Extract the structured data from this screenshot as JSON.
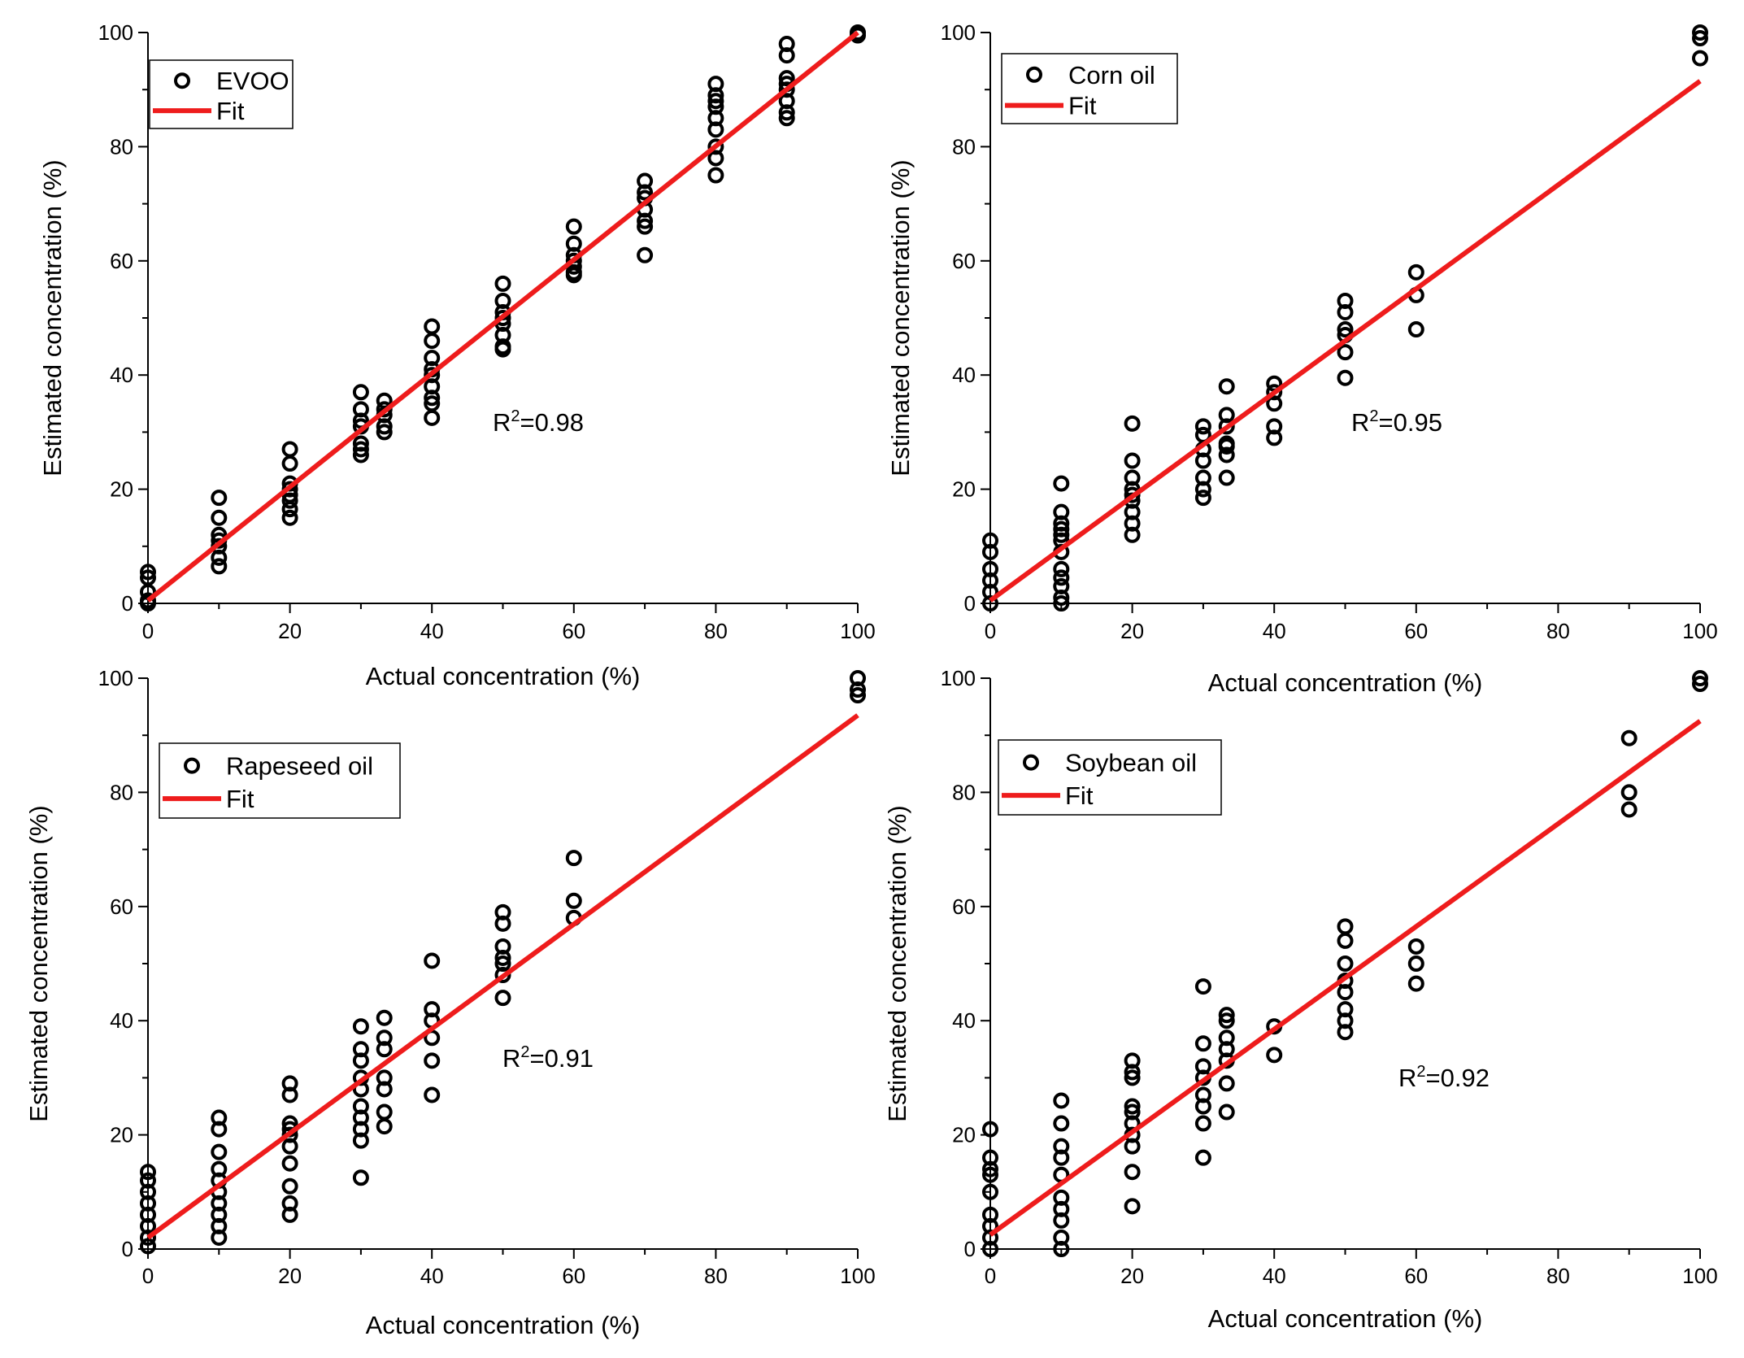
{
  "chart_data": [
    {
      "type": "scatter",
      "title": "",
      "xlabel": "Actual concentration (%)",
      "ylabel": "Estimated concentration (%)",
      "xlim": [
        0,
        100
      ],
      "ylim": [
        0,
        100
      ],
      "xticks": [
        "0",
        "20",
        "40",
        "60",
        "80",
        "100"
      ],
      "yticks": [
        "0",
        "20",
        "40",
        "60",
        "80",
        "100"
      ],
      "legend": {
        "position": "top-left",
        "entries": [
          "EVOO",
          "Fit"
        ]
      },
      "r2": {
        "prefix": "R",
        "superscript": "2",
        "value": "=0.98"
      },
      "fit": {
        "x": [
          0,
          100
        ],
        "y": [
          0.5,
          100
        ]
      },
      "series": [
        {
          "name": "EVOO",
          "x": [
            0,
            0,
            0,
            0,
            0,
            10,
            10,
            10,
            10,
            10,
            10,
            10,
            20,
            20,
            20,
            20,
            20,
            20,
            20,
            20,
            30,
            30,
            30,
            30,
            30,
            30,
            30,
            33.3,
            33.3,
            33.3,
            33.3,
            33.3,
            40,
            40,
            40,
            40,
            40,
            40,
            40,
            40,
            40,
            50,
            50,
            50,
            50,
            50,
            50,
            50,
            50,
            60,
            60,
            60,
            60,
            60,
            60,
            60,
            70,
            70,
            70,
            70,
            70,
            70,
            70,
            80,
            80,
            80,
            80,
            80,
            80,
            80,
            80,
            80,
            90,
            90,
            90,
            90,
            90,
            90,
            90,
            90,
            100,
            100
          ],
          "y": [
            5.5,
            4.5,
            2,
            0.5,
            0,
            18.5,
            15,
            12,
            10,
            8,
            6.5,
            11,
            27,
            24.5,
            21,
            18,
            16.5,
            15,
            20,
            19,
            37,
            34,
            31,
            28,
            26,
            27,
            32,
            35.5,
            33,
            31,
            30,
            34,
            48.5,
            46,
            43,
            41,
            38,
            36,
            35,
            32.5,
            40,
            56,
            53,
            51,
            49,
            47,
            45,
            50,
            44.5,
            66,
            63,
            61,
            59,
            58,
            57.5,
            60,
            74,
            71,
            69,
            67,
            66,
            61,
            72,
            91,
            89,
            87,
            85,
            83,
            78,
            75,
            88,
            80,
            98,
            96,
            92,
            90,
            88,
            86,
            85,
            91,
            100,
            99.5
          ]
        }
      ]
    },
    {
      "type": "scatter",
      "title": "",
      "xlabel": "Actual concentration (%)",
      "ylabel": "Estimated concentration (%)",
      "xlim": [
        0,
        100
      ],
      "ylim": [
        0,
        100
      ],
      "xticks": [
        "0",
        "20",
        "40",
        "60",
        "80",
        "100"
      ],
      "yticks": [
        "0",
        "20",
        "40",
        "60",
        "80",
        "100"
      ],
      "legend": {
        "position": "top-left",
        "entries": [
          "Corn oil",
          "Fit"
        ]
      },
      "r2": {
        "prefix": "R",
        "superscript": "2",
        "value": "=0.95"
      },
      "fit": {
        "x": [
          0,
          100
        ],
        "y": [
          0.5,
          91.5
        ]
      },
      "series": [
        {
          "name": "Corn oil",
          "x": [
            0,
            0,
            0,
            0,
            0,
            0,
            10,
            10,
            10,
            10,
            10,
            10,
            10,
            10,
            10,
            10,
            10,
            10,
            20,
            20,
            20,
            20,
            20,
            20,
            20,
            20,
            20,
            30,
            30,
            30,
            30,
            30,
            30,
            30,
            33.3,
            33.3,
            33.3,
            33.3,
            33.3,
            33.3,
            33.3,
            40,
            40,
            40,
            40,
            40,
            50,
            50,
            50,
            50,
            50,
            50,
            60,
            60,
            60,
            100,
            100,
            100
          ],
          "y": [
            11,
            9,
            6,
            4,
            2,
            0,
            21,
            16,
            13,
            11,
            9,
            6,
            3,
            1,
            0,
            14,
            12,
            4.5,
            31.5,
            25,
            22,
            20,
            18,
            16,
            14,
            12,
            19,
            31,
            29.5,
            27,
            25,
            22,
            20,
            18.5,
            38,
            33,
            31,
            28,
            26,
            22,
            27.5,
            38.5,
            37,
            35,
            31,
            29,
            53,
            51,
            48,
            47,
            44,
            39.5,
            58,
            54,
            48,
            100,
            99,
            95.5
          ]
        }
      ]
    },
    {
      "type": "scatter",
      "title": "",
      "xlabel": "Actual concentration (%)",
      "ylabel": "Estimated concentration (%)",
      "xlim": [
        0,
        100
      ],
      "ylim": [
        0,
        100
      ],
      "xticks": [
        "0",
        "20",
        "40",
        "60",
        "80",
        "100"
      ],
      "yticks": [
        "0",
        "20",
        "40",
        "60",
        "80",
        "100"
      ],
      "legend": {
        "position": "top-left",
        "entries": [
          "Rapeseed oil",
          "Fit"
        ]
      },
      "r2": {
        "prefix": "R",
        "superscript": "2",
        "value": "=0.91"
      },
      "fit": {
        "x": [
          0,
          100
        ],
        "y": [
          2,
          93.5
        ]
      },
      "series": [
        {
          "name": "Rapeseed oil",
          "x": [
            0,
            0,
            0,
            0,
            0,
            0,
            0,
            0,
            10,
            10,
            10,
            10,
            10,
            10,
            10,
            10,
            10,
            10,
            20,
            20,
            20,
            20,
            20,
            20,
            20,
            20,
            20,
            20,
            30,
            30,
            30,
            30,
            30,
            30,
            30,
            30,
            30,
            30,
            33.3,
            33.3,
            33.3,
            33.3,
            33.3,
            33.3,
            33.3,
            40,
            40,
            40,
            40,
            40,
            40,
            50,
            50,
            50,
            50,
            50,
            50,
            50,
            60,
            60,
            60,
            100,
            100,
            100
          ],
          "y": [
            13.5,
            12,
            10,
            8,
            6,
            4,
            2,
            0.5,
            23,
            21,
            17,
            14,
            12,
            10,
            8,
            6,
            4,
            2,
            29,
            27,
            22,
            20,
            18,
            15,
            11,
            8,
            6,
            21,
            39,
            35,
            33,
            30,
            28,
            25,
            23,
            21,
            19,
            12.5,
            40.5,
            37,
            35,
            30,
            28,
            24,
            21.5,
            50.5,
            42,
            40,
            37,
            33,
            27,
            59,
            57,
            53,
            50,
            48,
            44,
            51,
            68.5,
            61,
            58,
            100,
            98,
            97
          ]
        }
      ]
    },
    {
      "type": "scatter",
      "title": "",
      "xlabel": "Actual concentration (%)",
      "ylabel": "Estimated concentration (%)",
      "xlim": [
        0,
        100
      ],
      "ylim": [
        0,
        100
      ],
      "xticks": [
        "0",
        "20",
        "40",
        "60",
        "80",
        "100"
      ],
      "yticks": [
        "0",
        "20",
        "40",
        "60",
        "80",
        "100"
      ],
      "legend": {
        "position": "top-left",
        "entries": [
          "Soybean oil",
          "Fit"
        ]
      },
      "r2": {
        "prefix": "R",
        "superscript": "2",
        "value": "=0.92"
      },
      "fit": {
        "x": [
          0,
          100
        ],
        "y": [
          2.5,
          92.5
        ]
      },
      "series": [
        {
          "name": "Soybean oil",
          "x": [
            0,
            0,
            0,
            0,
            0,
            0,
            0,
            0,
            0,
            10,
            10,
            10,
            10,
            10,
            10,
            10,
            10,
            10,
            10,
            20,
            20,
            20,
            20,
            20,
            20,
            20,
            20,
            20,
            20,
            30,
            30,
            30,
            30,
            30,
            30,
            30,
            30,
            33.3,
            33.3,
            33.3,
            33.3,
            33.3,
            33.3,
            33.3,
            40,
            40,
            50,
            50,
            50,
            50,
            50,
            50,
            50,
            50,
            60,
            60,
            60,
            90,
            90,
            90,
            100,
            100
          ],
          "y": [
            21,
            16,
            14,
            13,
            10,
            6,
            4,
            2,
            0,
            26,
            22,
            18,
            16,
            13,
            9,
            7,
            5,
            2,
            0,
            33,
            31,
            25,
            24,
            22,
            20,
            18,
            13.5,
            7.5,
            30,
            46,
            36,
            32,
            30,
            27,
            25,
            22,
            16,
            41,
            40,
            37,
            35,
            33,
            29,
            24,
            39,
            34,
            56.5,
            54,
            50,
            47,
            45,
            42,
            40,
            38,
            53,
            50,
            46.5,
            89.5,
            80,
            77,
            100,
            99
          ]
        }
      ]
    }
  ]
}
